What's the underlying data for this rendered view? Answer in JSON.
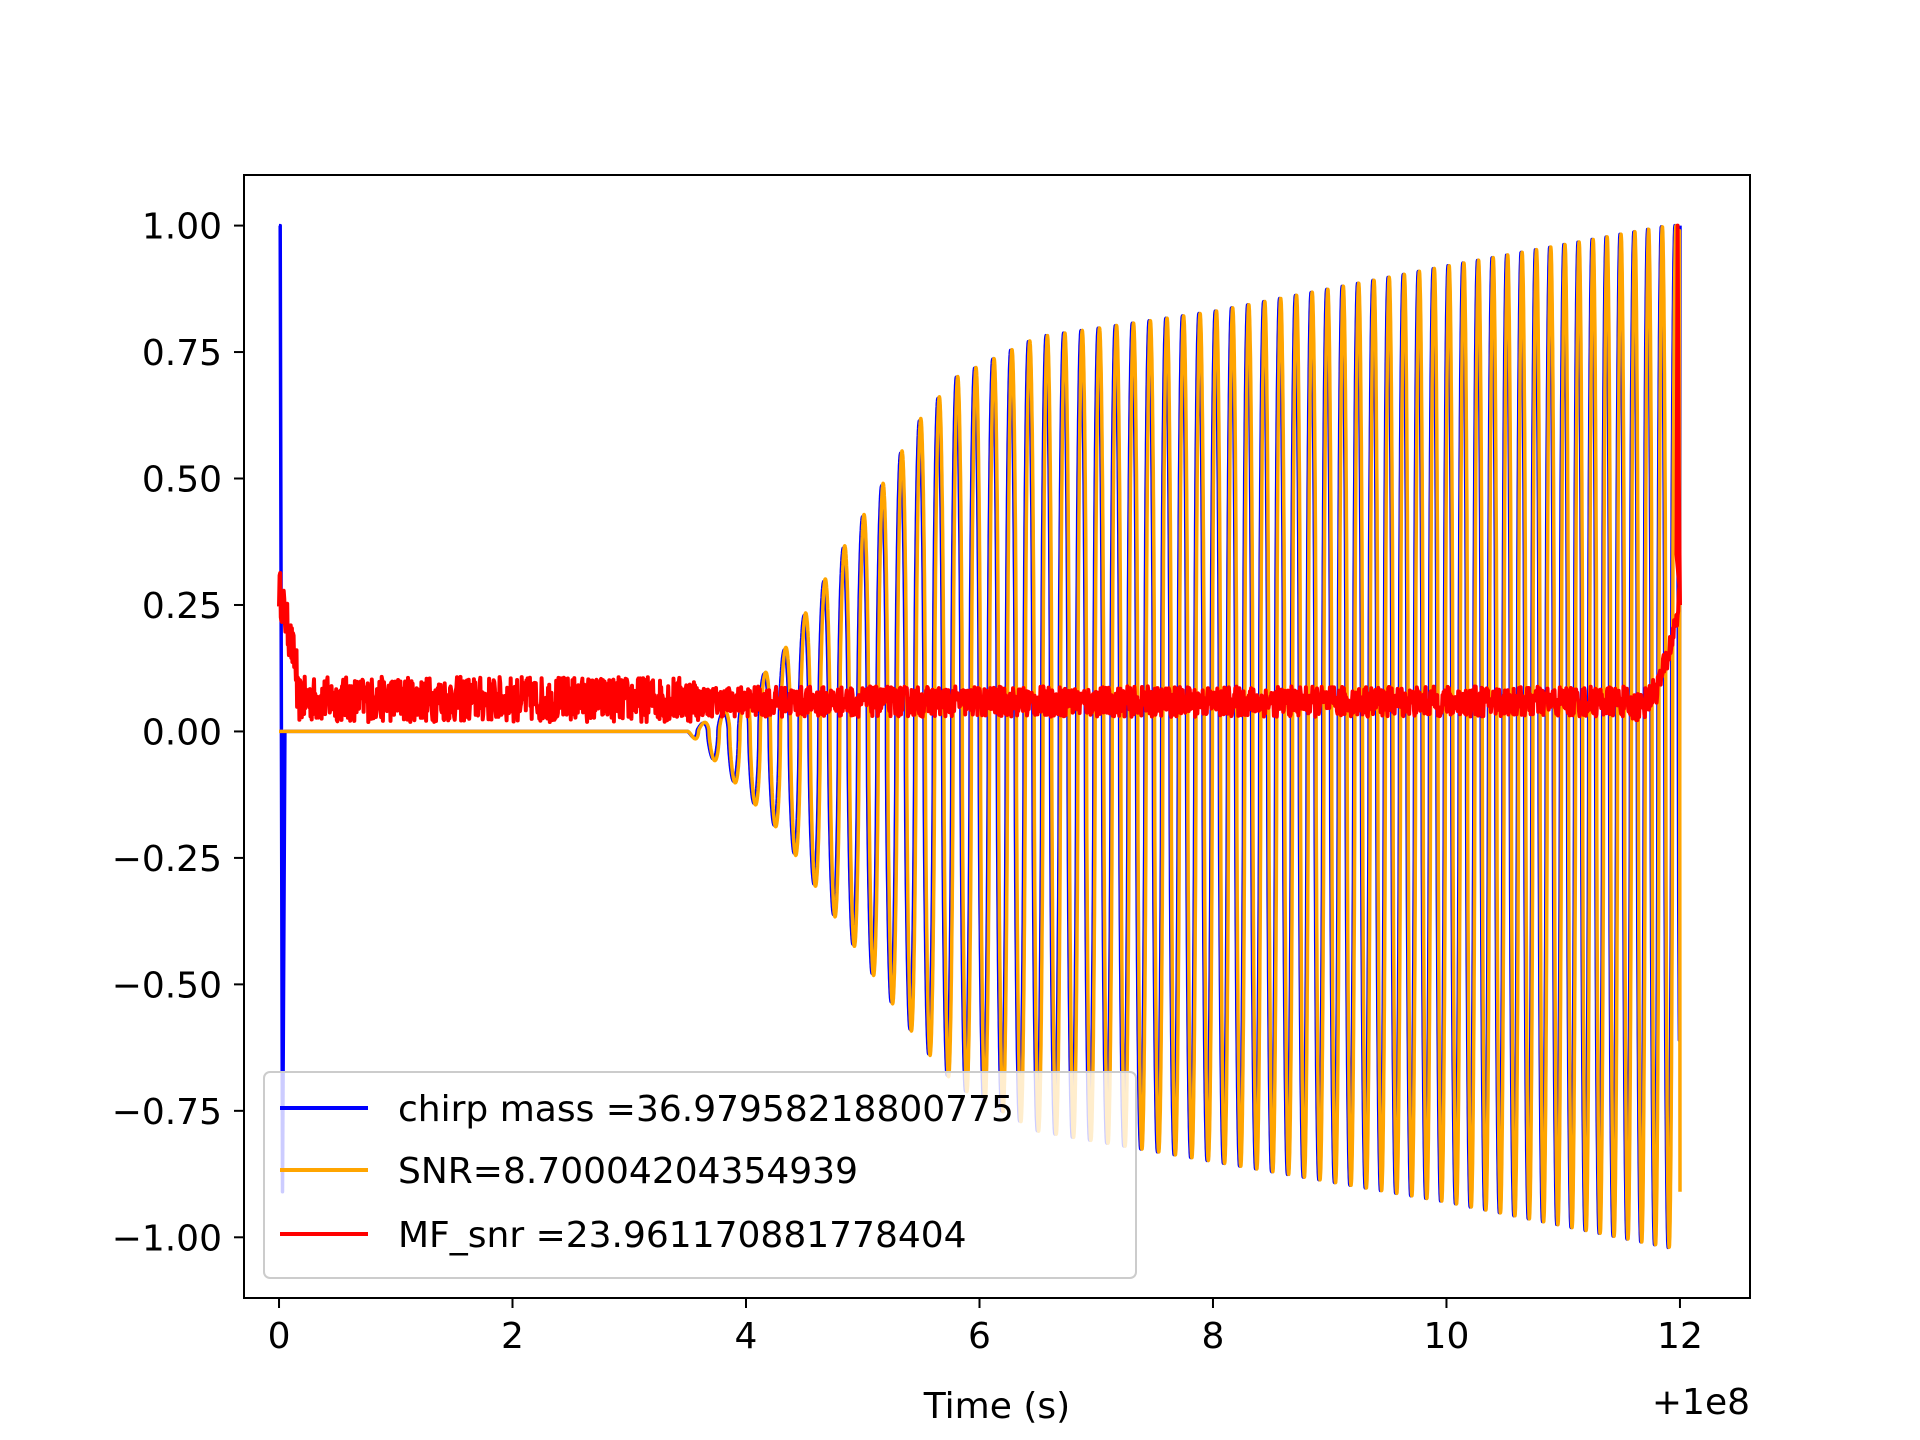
{
  "chart_data": {
    "type": "line",
    "title": "",
    "xlabel": "Time (s)",
    "ylabel": "",
    "x_offset_text": "+1e8",
    "xlim": [
      -0.3,
      12.6
    ],
    "ylim": [
      -1.12,
      1.1
    ],
    "x_ticks": [
      0,
      2,
      4,
      6,
      8,
      10,
      12
    ],
    "x_tick_labels": [
      "0",
      "2",
      "4",
      "6",
      "8",
      "10",
      "12"
    ],
    "y_ticks": [
      1.0,
      0.75,
      0.5,
      0.25,
      0.0,
      -0.25,
      -0.5,
      -0.75,
      -1.0
    ],
    "y_tick_labels": [
      "1.00",
      "0.75",
      "0.50",
      "0.25",
      "0.00",
      "−0.25",
      "−0.50",
      "−0.75",
      "−1.00"
    ],
    "grid": false,
    "legend_position": "lower-left",
    "series": [
      {
        "name": "chirp mass =36.97958218800775",
        "color": "#0000ff",
        "description_points": [
          [
            0.0,
            1.0
          ],
          [
            0.03,
            -0.91
          ],
          [
            3.5,
            0.0
          ],
          [
            3.9,
            -0.1
          ],
          [
            4.5,
            -0.25
          ],
          [
            5.0,
            -0.42
          ],
          [
            5.3,
            -0.52
          ],
          [
            5.8,
            -0.7
          ],
          [
            6.5,
            -0.79
          ],
          [
            8.0,
            -0.85
          ],
          [
            10.0,
            -0.93
          ],
          [
            11.8,
            -1.02
          ],
          [
            12.0,
            1.0
          ]
        ]
      },
      {
        "name": "SNR=8.70004204354939",
        "color": "#ffa500",
        "description_points": [
          [
            0.0,
            0.0
          ],
          [
            3.5,
            0.0
          ],
          [
            4.0,
            0.1
          ],
          [
            4.5,
            0.25
          ],
          [
            5.0,
            0.45
          ],
          [
            5.5,
            0.6
          ],
          [
            5.8,
            0.7
          ],
          [
            6.5,
            0.78
          ],
          [
            8.0,
            0.82
          ],
          [
            10.0,
            0.9
          ],
          [
            11.9,
            0.99
          ],
          [
            12.0,
            -0.91
          ]
        ]
      },
      {
        "name": "MF_snr =23.961170881778404",
        "color": "#ff0000",
        "description_points": [
          [
            0.0,
            0.27
          ],
          [
            0.1,
            0.1
          ],
          [
            0.5,
            0.05
          ],
          [
            2.0,
            0.06
          ],
          [
            3.0,
            0.05
          ],
          [
            4.0,
            0.05
          ],
          [
            6.0,
            0.06
          ],
          [
            8.0,
            0.05
          ],
          [
            10.0,
            0.05
          ],
          [
            11.6,
            0.05
          ],
          [
            11.9,
            0.2
          ],
          [
            11.97,
            1.0
          ],
          [
            12.0,
            0.25
          ]
        ]
      }
    ]
  }
}
